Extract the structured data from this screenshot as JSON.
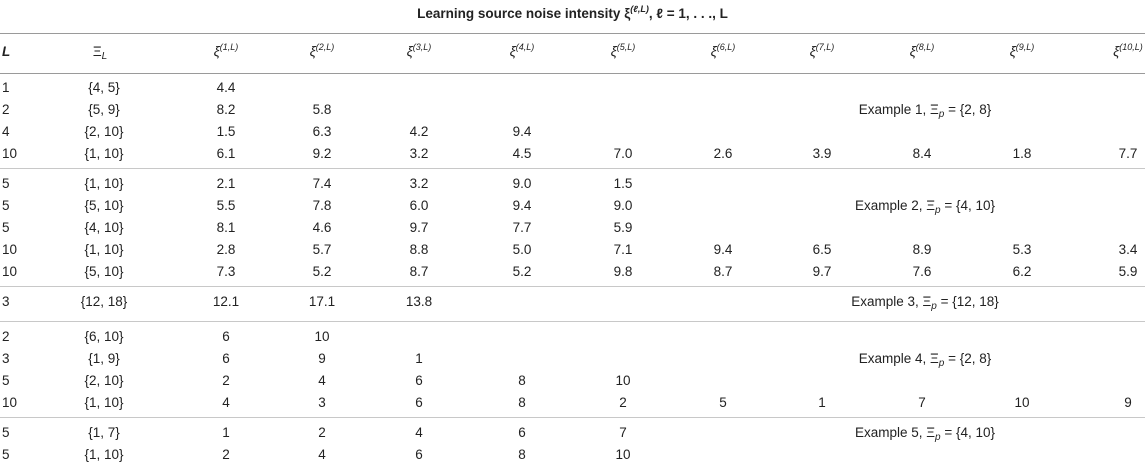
{
  "caption": {
    "text": "Learning source noise intensity ξ",
    "sup": "(ℓ,L)",
    "rest": ", ℓ = 1, . . ., L"
  },
  "headers": {
    "L": "L",
    "Xi": "Ξ",
    "Xi_sub": "L",
    "xi": "ξ",
    "xi_sups": [
      "(1,L)",
      "(2,L)",
      "(3,L)",
      "(4,L)",
      "(5,L)",
      "(6,L)",
      "(7,L)",
      "(8,L)",
      "(9,L)",
      "(10,L)"
    ]
  },
  "groups": [
    {
      "example": {
        "label": "Example 1, Ξ",
        "sub": "p",
        "value": " = {2, 8}"
      },
      "rows": [
        {
          "L": "1",
          "Xi": "{4, 5}",
          "vals": [
            "4.4"
          ]
        },
        {
          "L": "2",
          "Xi": "{5, 9}",
          "vals": [
            "8.2",
            "5.8"
          ]
        },
        {
          "L": "4",
          "Xi": "{2, 10}",
          "vals": [
            "1.5",
            "6.3",
            "4.2",
            "9.4"
          ]
        },
        {
          "L": "10",
          "Xi": "{1, 10}",
          "vals": [
            "6.1",
            "9.2",
            "3.2",
            "4.5",
            "7.0",
            "2.6",
            "3.9",
            "8.4",
            "1.8",
            "7.7"
          ]
        }
      ]
    },
    {
      "example": {
        "label": "Example 2, Ξ",
        "sub": "p",
        "value": " = {4, 10}"
      },
      "rows": [
        {
          "L": "5",
          "Xi": "{1, 10}",
          "vals": [
            "2.1",
            "7.4",
            "3.2",
            "9.0",
            "1.5"
          ]
        },
        {
          "L": "5",
          "Xi": "{5, 10}",
          "vals": [
            "5.5",
            "7.8",
            "6.0",
            "9.4",
            "9.0"
          ]
        },
        {
          "L": "5",
          "Xi": "{4, 10}",
          "vals": [
            "8.1",
            "4.6",
            "9.7",
            "7.7",
            "5.9"
          ]
        },
        {
          "L": "10",
          "Xi": "{1, 10}",
          "vals": [
            "2.8",
            "5.7",
            "8.8",
            "5.0",
            "7.1",
            "9.4",
            "6.5",
            "8.9",
            "5.3",
            "3.4"
          ]
        },
        {
          "L": "10",
          "Xi": "{5, 10}",
          "vals": [
            "7.3",
            "5.2",
            "8.7",
            "5.2",
            "9.8",
            "8.7",
            "9.7",
            "7.6",
            "6.2",
            "5.9"
          ]
        }
      ]
    },
    {
      "example": {
        "label": "Example 3, Ξ",
        "sub": "p",
        "value": " = {12, 18}"
      },
      "rows": [
        {
          "L": "3",
          "Xi": "{12, 18}",
          "vals": [
            "12.1",
            "17.1",
            "13.8"
          ]
        }
      ]
    },
    {
      "example": {
        "label": "Example 4, Ξ",
        "sub": "p",
        "value": " = {2, 8}"
      },
      "rows": [
        {
          "L": "2",
          "Xi": "{6, 10}",
          "vals": [
            "6",
            "10"
          ]
        },
        {
          "L": "3",
          "Xi": "{1, 9}",
          "vals": [
            "6",
            "9",
            "1"
          ]
        },
        {
          "L": "5",
          "Xi": "{2, 10}",
          "vals": [
            "2",
            "4",
            "6",
            "8",
            "10"
          ]
        },
        {
          "L": "10",
          "Xi": "{1, 10}",
          "vals": [
            "4",
            "3",
            "6",
            "8",
            "2",
            "5",
            "1",
            "7",
            "10",
            "9"
          ]
        }
      ]
    },
    {
      "example": {
        "label": "Example 5, Ξ",
        "sub": "p",
        "value": " = {4, 10}"
      },
      "rows": [
        {
          "L": "5",
          "Xi": "{1, 7}",
          "vals": [
            "1",
            "2",
            "4",
            "6",
            "7"
          ]
        },
        {
          "L": "5",
          "Xi": "{1, 10}",
          "vals": [
            "2",
            "4",
            "6",
            "8",
            "10"
          ]
        }
      ]
    }
  ]
}
